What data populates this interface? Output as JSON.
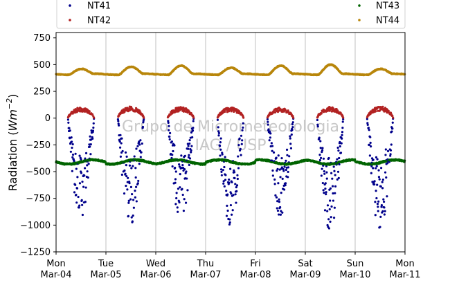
{
  "chart_data": {
    "type": "scatter",
    "title": "",
    "ylabel_prefix": "Radiation (",
    "ylabel_unit_base": "Wm",
    "ylabel_unit_exp": "−2",
    "ylabel_suffix": ")",
    "xlabel": "",
    "ylim": [
      -1250,
      800
    ],
    "yticks": [
      -1250,
      -1000,
      -750,
      -500,
      -250,
      0,
      250,
      500,
      750
    ],
    "ytick_labels": [
      "−1250",
      "−1000",
      "−750",
      "−500",
      "−250",
      "0",
      "250",
      "500",
      "750"
    ],
    "xlim_days": [
      0,
      7
    ],
    "xticks": [
      {
        "day": "Mon",
        "date": "Mar-04"
      },
      {
        "day": "Tue",
        "date": "Mar-05"
      },
      {
        "day": "Wed",
        "date": "Mar-06"
      },
      {
        "day": "Thu",
        "date": "Mar-07"
      },
      {
        "day": "Fri",
        "date": "Mar-08"
      },
      {
        "day": "Sat",
        "date": "Mar-09"
      },
      {
        "day": "Sun",
        "date": "Mar-10"
      },
      {
        "day": "Mon",
        "date": "Mar-11"
      }
    ],
    "grid_x": true,
    "grid_y": false,
    "legend_position": "top",
    "watermark": [
      "Grupo de Micrometeorologia",
      "IAG / USP"
    ],
    "series": [
      {
        "name": "NT41",
        "color": "#00008b",
        "description_points_per_day": [
          {
            "day": 0,
            "min": -960
          },
          {
            "day": 1,
            "min": -1010
          },
          {
            "day": 2,
            "min": -970
          },
          {
            "day": 3,
            "min": -1040
          },
          {
            "day": 4,
            "min": -940
          },
          {
            "day": 5,
            "min": -1060
          },
          {
            "day": 6,
            "min": -1060
          }
        ]
      },
      {
        "name": "NT42",
        "color": "#b22222",
        "daily_peak": [
          100,
          110,
          105,
          100,
          100,
          105,
          110
        ]
      },
      {
        "name": "NT43",
        "color": "#006400",
        "night_level": -390,
        "day_level": -430
      },
      {
        "name": "NT44",
        "color": "#b8860b",
        "night_level": 410,
        "daily_peak": [
          460,
          480,
          490,
          470,
          490,
          500,
          460
        ]
      }
    ]
  }
}
